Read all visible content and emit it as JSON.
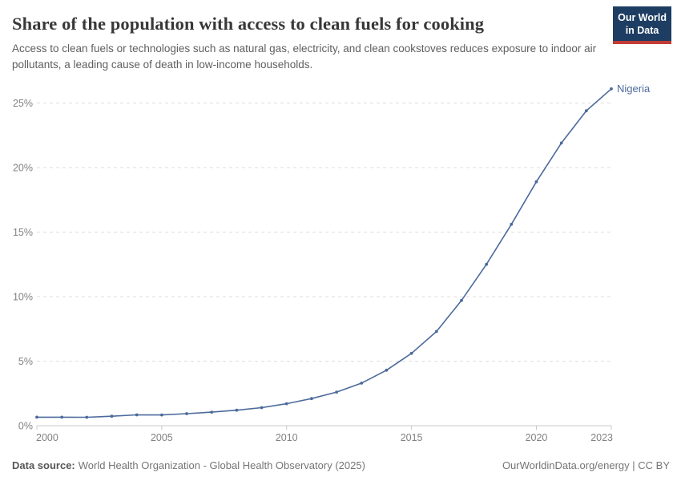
{
  "header": {
    "title": "Share of the population with access to clean fuels for cooking",
    "subtitle": "Access to clean fuels or technologies such as natural gas, electricity, and clean cookstoves reduces exposure to indoor air pollutants, a leading cause of death in low-income households.",
    "logo": {
      "line1": "Our World",
      "line2": "in Data"
    }
  },
  "footer": {
    "source_label": "Data source:",
    "source_text": "World Health Organization - Global Health Observatory (2025)",
    "license_text": "OurWorldinData.org/energy | CC BY"
  },
  "colors": {
    "line": "#4c6a9c",
    "series_label": "#4c6a9c",
    "logo_background": "#1d3d63",
    "logo_accent": "#c23b34",
    "gridline": "#dedede",
    "axis": "#c8c8c8",
    "tick_label": "#818181"
  },
  "chart_data": {
    "type": "line",
    "title": "Share of the population with access to clean fuels for cooking",
    "xlabel": "",
    "ylabel": "",
    "x": [
      2000,
      2001,
      2002,
      2003,
      2004,
      2005,
      2006,
      2007,
      2008,
      2009,
      2010,
      2011,
      2012,
      2013,
      2014,
      2015,
      2016,
      2017,
      2018,
      2019,
      2020,
      2021,
      2022,
      2023
    ],
    "series": [
      {
        "name": "Nigeria",
        "values": [
          0.66,
          0.66,
          0.65,
          0.73,
          0.84,
          0.83,
          0.93,
          1.05,
          1.2,
          1.4,
          1.7,
          2.1,
          2.6,
          3.3,
          4.3,
          5.6,
          7.3,
          9.7,
          12.5,
          15.6,
          18.9,
          21.9,
          24.4,
          26.1
        ]
      }
    ],
    "xlim": [
      2000,
      2023
    ],
    "ylim": [
      0,
      27
    ],
    "y_ticks": [
      0,
      5,
      10,
      15,
      20,
      25
    ],
    "y_tick_labels": [
      "0%",
      "5%",
      "10%",
      "15%",
      "20%",
      "25%"
    ],
    "x_ticks": [
      2000,
      2005,
      2010,
      2015,
      2020,
      2023
    ],
    "x_tick_labels": [
      "2000",
      "2005",
      "2010",
      "2015",
      "2020",
      "2023"
    ],
    "grid": "horizontal-dashed",
    "legend_position": "end-of-line",
    "end_label": "Nigeria"
  }
}
